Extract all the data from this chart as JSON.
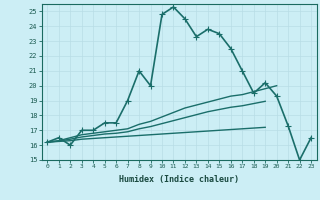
{
  "title": "",
  "xlabel": "Humidex (Indice chaleur)",
  "bg_color": "#cceef5",
  "grid_color": "#b8dde6",
  "line_color": "#1a6e6a",
  "xlim": [
    -0.5,
    23.5
  ],
  "ylim": [
    15,
    25.5
  ],
  "xticks": [
    0,
    1,
    2,
    3,
    4,
    5,
    6,
    7,
    8,
    9,
    10,
    11,
    12,
    13,
    14,
    15,
    16,
    17,
    18,
    19,
    20,
    21,
    22,
    23
  ],
  "yticks": [
    15,
    16,
    17,
    18,
    19,
    20,
    21,
    22,
    23,
    24,
    25
  ],
  "series": [
    {
      "x": [
        0,
        1,
        2,
        3,
        4,
        5,
        6,
        7,
        8,
        9,
        10,
        11,
        12,
        13,
        14,
        15,
        16,
        17,
        18,
        19,
        20,
        21,
        22,
        23
      ],
      "y": [
        16.2,
        16.5,
        16.0,
        17.0,
        17.0,
        17.5,
        17.5,
        19.0,
        21.0,
        20.0,
        24.8,
        25.3,
        24.5,
        23.3,
        23.8,
        23.5,
        22.5,
        21.0,
        19.5,
        20.2,
        19.3,
        17.3,
        15.0,
        16.5
      ],
      "marker": "+",
      "markersize": 4,
      "lw": 1.2
    },
    {
      "x": [
        0,
        1,
        2,
        3,
        4,
        5,
        6,
        7,
        8,
        9,
        10,
        11,
        12,
        13,
        14,
        15,
        16,
        17,
        18,
        19,
        20,
        21,
        22,
        23
      ],
      "y": [
        16.2,
        16.3,
        16.5,
        16.7,
        16.8,
        16.9,
        17.0,
        17.1,
        17.4,
        17.6,
        17.9,
        18.2,
        18.5,
        18.7,
        18.9,
        19.1,
        19.3,
        19.4,
        19.6,
        19.8,
        20.0,
        null,
        null,
        null
      ],
      "marker": null,
      "markersize": 0,
      "lw": 1.0
    },
    {
      "x": [
        0,
        1,
        2,
        3,
        4,
        5,
        6,
        7,
        8,
        9,
        10,
        11,
        12,
        13,
        14,
        15,
        16,
        17,
        18,
        19,
        20,
        21,
        22,
        23
      ],
      "y": [
        16.2,
        16.25,
        16.3,
        16.4,
        16.45,
        16.5,
        16.55,
        16.6,
        16.65,
        16.7,
        16.75,
        16.8,
        16.85,
        16.9,
        16.95,
        17.0,
        17.05,
        17.1,
        17.15,
        17.2,
        null,
        null,
        null,
        null
      ],
      "marker": null,
      "markersize": 0,
      "lw": 1.0
    },
    {
      "x": [
        0,
        1,
        2,
        3,
        4,
        5,
        6,
        7,
        8,
        9,
        10,
        11,
        12,
        13,
        14,
        15,
        16,
        17,
        18,
        19,
        20,
        21,
        22,
        23
      ],
      "y": [
        16.2,
        16.28,
        16.4,
        16.55,
        16.65,
        16.75,
        16.8,
        16.9,
        17.1,
        17.25,
        17.45,
        17.65,
        17.85,
        18.05,
        18.25,
        18.4,
        18.55,
        18.65,
        18.8,
        18.95,
        null,
        null,
        null,
        null
      ],
      "marker": null,
      "markersize": 0,
      "lw": 1.0
    }
  ]
}
